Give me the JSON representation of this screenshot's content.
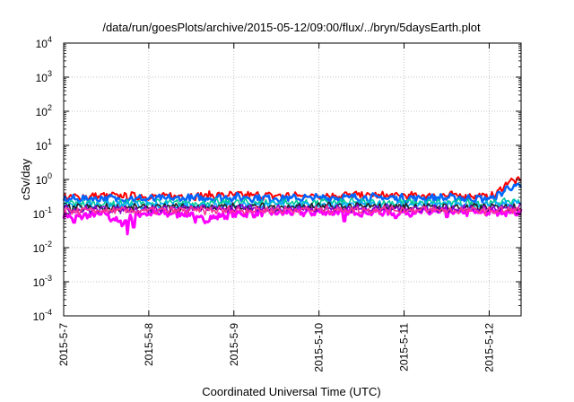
{
  "chart_data": {
    "type": "line",
    "title": "/data/run/goesPlots/archive/2015-05-12/09:00/flux/../bryn/5daysEarth.plot",
    "xlabel": "Coordinated Universal Time (UTC)",
    "ylabel": "cSv/day",
    "y_scale": "log",
    "ylim": [
      0.0001,
      10000
    ],
    "xlim": [
      "2015-05-07",
      "2015-05-12 09:00"
    ],
    "grid": true,
    "legend": "none",
    "x_ticks": [
      "2015-5-7",
      "2015-5-8",
      "2015-5-9",
      "2015-5-10",
      "2015-5-11",
      "2015-5-12"
    ],
    "y_ticks": [
      {
        "base": "10",
        "exp": "-4"
      },
      {
        "base": "10",
        "exp": "-3"
      },
      {
        "base": "10",
        "exp": "-2"
      },
      {
        "base": "10",
        "exp": "-1"
      },
      {
        "base": "10",
        "exp": "0"
      },
      {
        "base": "10",
        "exp": "1"
      },
      {
        "base": "10",
        "exp": "2"
      },
      {
        "base": "10",
        "exp": "3"
      },
      {
        "base": "10",
        "exp": "4"
      }
    ],
    "series": [
      {
        "color": "#ff00ff",
        "width": 3.0,
        "keypoints": [
          [
            0,
            0.09
          ],
          [
            0.15,
            0.08
          ],
          [
            0.5,
            0.1
          ],
          [
            0.55,
            0.075
          ],
          [
            0.7,
            0.05
          ],
          [
            0.8,
            0.09
          ],
          [
            0.9,
            0.1
          ],
          [
            1.5,
            0.1
          ],
          [
            1.6,
            0.065
          ],
          [
            2,
            0.1
          ],
          [
            3,
            0.11
          ],
          [
            4,
            0.11
          ],
          [
            4.5,
            0.11
          ],
          [
            5,
            0.11
          ],
          [
            5.3,
            0.115
          ],
          [
            5.375,
            0.11
          ]
        ],
        "dips": [
          [
            0.12,
            0.055
          ],
          [
            0.75,
            0.025
          ],
          [
            0.82,
            0.04
          ],
          [
            1.55,
            0.055
          ],
          [
            3.3,
            0.06
          ],
          [
            3.9,
            0.075
          ],
          [
            4.5,
            0.08
          ]
        ]
      },
      {
        "color": "#ff0000",
        "width": 2.0,
        "keypoints": [
          [
            0,
            0.3
          ],
          [
            0.5,
            0.33
          ],
          [
            1,
            0.32
          ],
          [
            1.5,
            0.33
          ],
          [
            2,
            0.35
          ],
          [
            2.5,
            0.33
          ],
          [
            3,
            0.34
          ],
          [
            3.5,
            0.35
          ],
          [
            4,
            0.33
          ],
          [
            4.5,
            0.34
          ],
          [
            5,
            0.32
          ],
          [
            5.05,
            0.34
          ],
          [
            5.12,
            0.45
          ],
          [
            5.2,
            0.8
          ],
          [
            5.28,
            0.95
          ],
          [
            5.375,
            0.85
          ]
        ]
      },
      {
        "color": "#0066ff",
        "width": 2.5,
        "keypoints": [
          [
            0,
            0.26
          ],
          [
            0.5,
            0.28
          ],
          [
            1,
            0.27
          ],
          [
            1.5,
            0.28
          ],
          [
            2,
            0.3
          ],
          [
            2.5,
            0.28
          ],
          [
            3,
            0.29
          ],
          [
            3.5,
            0.3
          ],
          [
            4,
            0.28
          ],
          [
            4.5,
            0.29
          ],
          [
            5,
            0.27
          ],
          [
            5.05,
            0.29
          ],
          [
            5.12,
            0.35
          ],
          [
            5.2,
            0.55
          ],
          [
            5.28,
            0.62
          ],
          [
            5.375,
            0.55
          ]
        ]
      },
      {
        "color": "#00cc99",
        "width": 1.6,
        "keypoints": [
          [
            0,
            0.2
          ],
          [
            1,
            0.2
          ],
          [
            2,
            0.21
          ],
          [
            3,
            0.21
          ],
          [
            4,
            0.21
          ],
          [
            5,
            0.2
          ],
          [
            5.15,
            0.22
          ],
          [
            5.375,
            0.24
          ]
        ]
      },
      {
        "color": "#00aaff",
        "width": 1.6,
        "keypoints": [
          [
            0,
            0.17
          ],
          [
            1,
            0.17
          ],
          [
            2,
            0.18
          ],
          [
            3,
            0.18
          ],
          [
            4,
            0.18
          ],
          [
            5,
            0.17
          ],
          [
            5.2,
            0.19
          ],
          [
            5.375,
            0.2
          ]
        ]
      },
      {
        "color": "#222222",
        "width": 1.6,
        "keypoints": [
          [
            0,
            0.145
          ],
          [
            1,
            0.15
          ],
          [
            2,
            0.155
          ],
          [
            3,
            0.16
          ],
          [
            4,
            0.16
          ],
          [
            5,
            0.15
          ],
          [
            5.375,
            0.165
          ]
        ]
      },
      {
        "color": "#8800cc",
        "width": 1.6,
        "keypoints": [
          [
            0,
            0.13
          ],
          [
            1,
            0.135
          ],
          [
            2,
            0.14
          ],
          [
            3,
            0.14
          ],
          [
            4,
            0.14
          ],
          [
            5,
            0.135
          ],
          [
            5.375,
            0.145
          ]
        ]
      },
      {
        "color": "#ff3399",
        "width": 1.6,
        "keypoints": [
          [
            0,
            0.12
          ],
          [
            1,
            0.12
          ],
          [
            2,
            0.125
          ],
          [
            3,
            0.13
          ],
          [
            4,
            0.13
          ],
          [
            5,
            0.12
          ],
          [
            5.375,
            0.13
          ]
        ]
      }
    ]
  }
}
